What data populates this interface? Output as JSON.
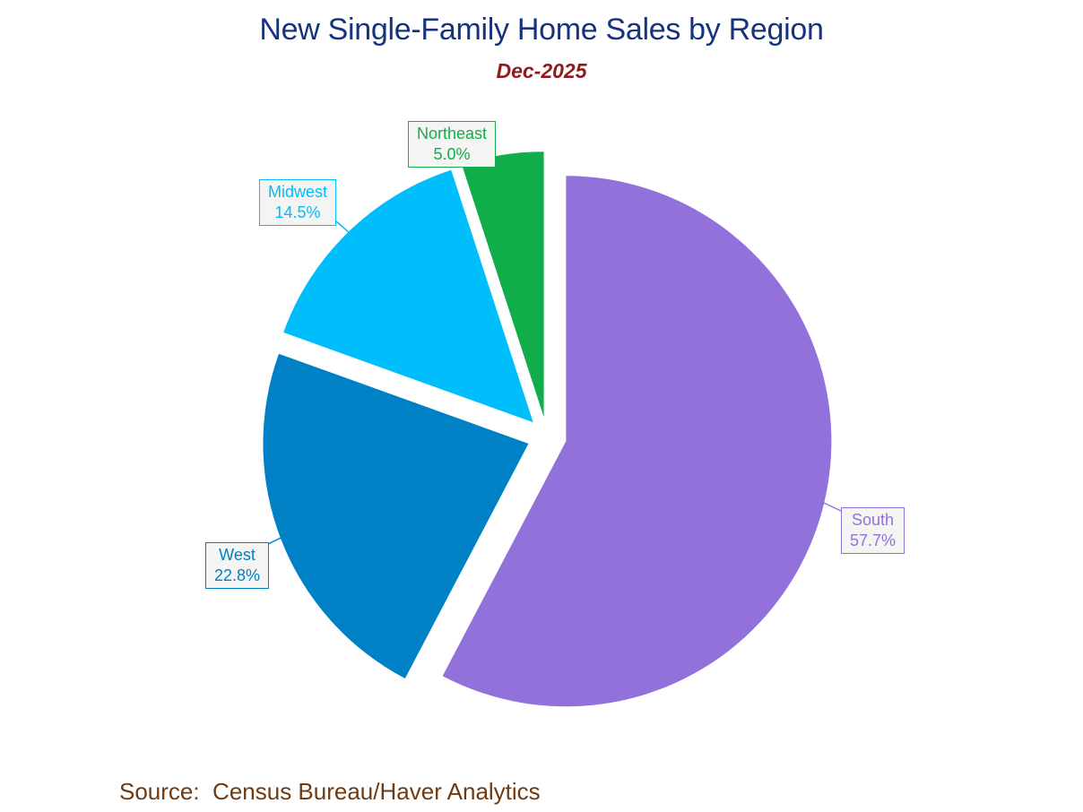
{
  "header": {
    "title": "New Single-Family Home Sales by Region",
    "subtitle": "Dec-2025"
  },
  "footer": {
    "source_text": "Source:  Census Bureau/Haver Analytics"
  },
  "colors": {
    "title": "#16337E",
    "subtitle": "#8E1B1E",
    "source": "#6E3B12",
    "label_box_bg": "#F4F4F2",
    "background": "#FFFFFF"
  },
  "chart_data": {
    "type": "pie",
    "title": "New Single-Family Home Sales by Region",
    "subtitle": "Dec-2025",
    "units": "percent of total",
    "start_angle": "12 o'clock",
    "direction": "clockwise",
    "exploded": true,
    "legend_position": "none (boxed callout labels with leader lines)",
    "slices": [
      {
        "label": "South",
        "value": 57.7,
        "pct_label": "57.7%",
        "color": "#9271DB"
      },
      {
        "label": "West",
        "value": 22.8,
        "pct_label": "22.8%",
        "color": "#0081C5"
      },
      {
        "label": "Midwest",
        "value": 14.5,
        "pct_label": "14.5%",
        "color": "#00BDFB"
      },
      {
        "label": "Northeast",
        "value": 5.0,
        "pct_label": "5.0%",
        "color": "#12AD4B"
      }
    ],
    "source": "Census Bureau/Haver Analytics"
  }
}
